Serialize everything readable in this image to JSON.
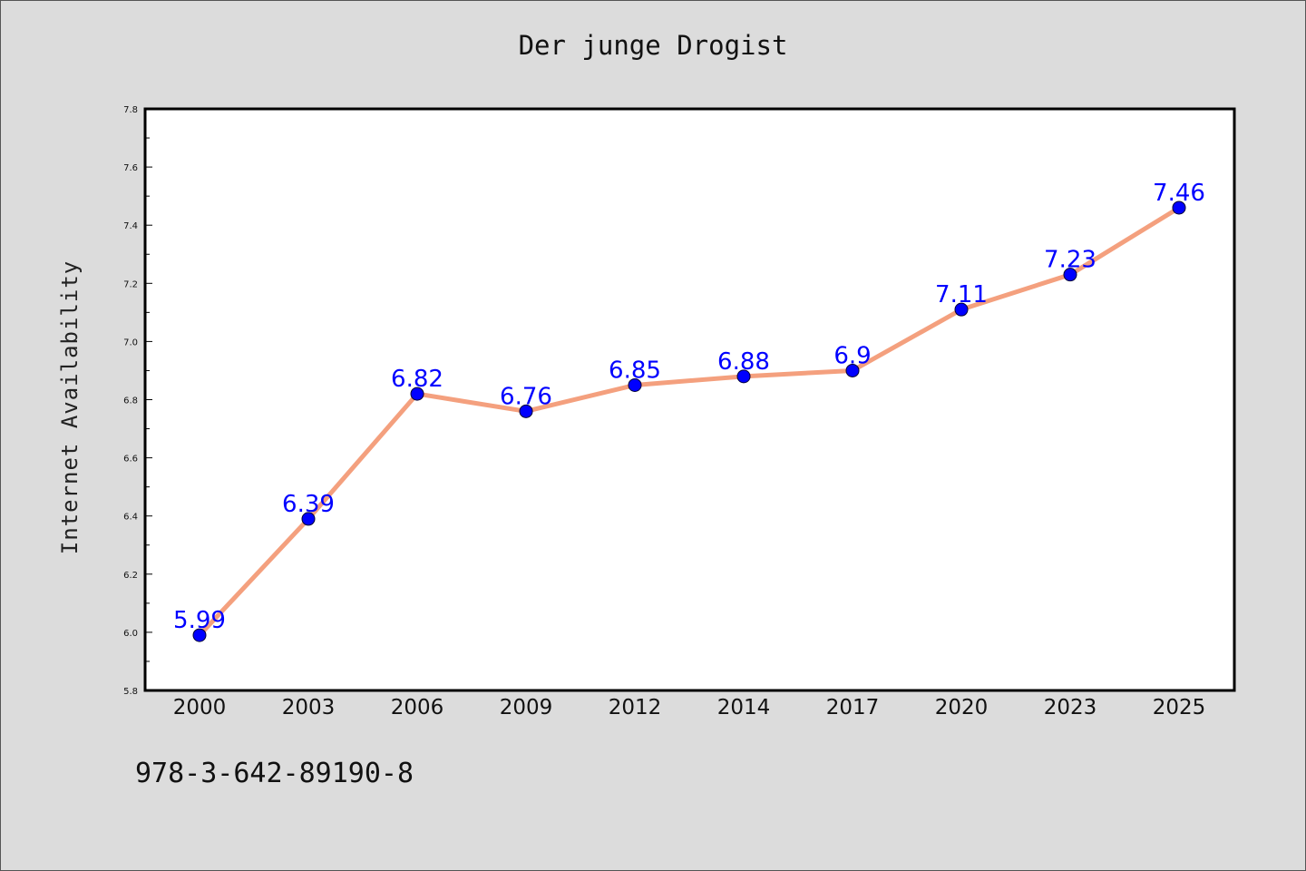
{
  "title": "Der junge Drogist",
  "footer_text": "978-3-642-89190-8",
  "chart_data": {
    "type": "line",
    "title": "Der junge Drogist",
    "xlabel": "",
    "ylabel": "Internet Availability",
    "categories": [
      "2000",
      "2003",
      "2006",
      "2009",
      "2012",
      "2014",
      "2017",
      "2020",
      "2023",
      "2025"
    ],
    "series": [
      {
        "values": [
          5.99,
          6.39,
          6.82,
          6.76,
          6.85,
          6.88,
          6.9,
          7.11,
          7.23,
          7.46
        ],
        "labels": [
          "5.99",
          "6.39",
          "6.82",
          "6.76",
          "6.85",
          "6.88",
          "6.9",
          "7.11",
          "7.23",
          "7.46"
        ],
        "line_color": "#f4a07e",
        "marker_color": "#0000ff"
      }
    ],
    "ylim": [
      5.8,
      7.8
    ],
    "yticks": [
      "5.8",
      "6.0",
      "6.2",
      "6.4",
      "6.6",
      "6.8",
      "7.0",
      "7.2",
      "7.4",
      "7.6",
      "7.8"
    ],
    "grid": false,
    "legend": "none"
  },
  "colors": {
    "background": "#dcdcdc",
    "plot_background": "#ffffff",
    "line": "#f4a07e",
    "marker": "#0000ff",
    "data_label": "#0000ff"
  }
}
